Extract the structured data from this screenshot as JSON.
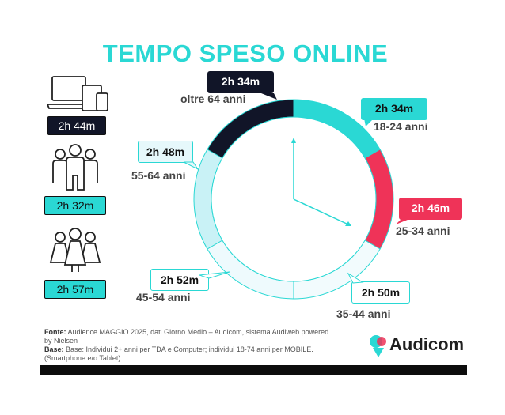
{
  "title": "TEMPO SPESO ONLINE",
  "summary": [
    {
      "value": "2h 44m",
      "icon": "devices-icon",
      "bg": "#111528",
      "fg": "#ffffff"
    },
    {
      "value": "2h 32m",
      "icon": "men-group-icon",
      "bg": "#2ad8d4",
      "fg": "#111111"
    },
    {
      "value": "2h 57m",
      "icon": "women-group-icon",
      "bg": "#2ad8d4",
      "fg": "#111111"
    }
  ],
  "colors": {
    "accent": "#2ad8d4",
    "dark": "#111528",
    "red": "#ef3358",
    "light": "#c9f2f6",
    "lighter": "#e6f8fb",
    "lightest": "#f2fbfd"
  },
  "chart_data": {
    "type": "donut",
    "segments": [
      {
        "label": "18-24 anni",
        "value": "2h 34m",
        "color": "#2ad8d4"
      },
      {
        "label": "25-34 anni",
        "value": "2h 46m",
        "color": "#ef3358"
      },
      {
        "label": "35-44 anni",
        "value": "2h 50m",
        "color": "#f2fbfd"
      },
      {
        "label": "45-54 anni",
        "value": "2h 52m",
        "color": "#eefafd"
      },
      {
        "label": "55-64 anni",
        "value": "2h 48m",
        "color": "#c9f2f6"
      },
      {
        "label": "oltre 64 anni",
        "value": "2h 34m",
        "color": "#111528"
      }
    ]
  },
  "footer": {
    "fonte_label": "Fonte:",
    "fonte_text": "Audience MAGGIO 2025, dati Giorno Medio – Audicom, sistema Audiweb powered by Nielsen",
    "base_label": "Base:",
    "base_text": "Base: Individui 2+ anni per TDA e Computer; individui 18-74 anni per MOBILE.(Smartphone e/o Tablet)"
  },
  "logo": {
    "text": "Audicom",
    "icon": "audicom-logo-icon"
  }
}
